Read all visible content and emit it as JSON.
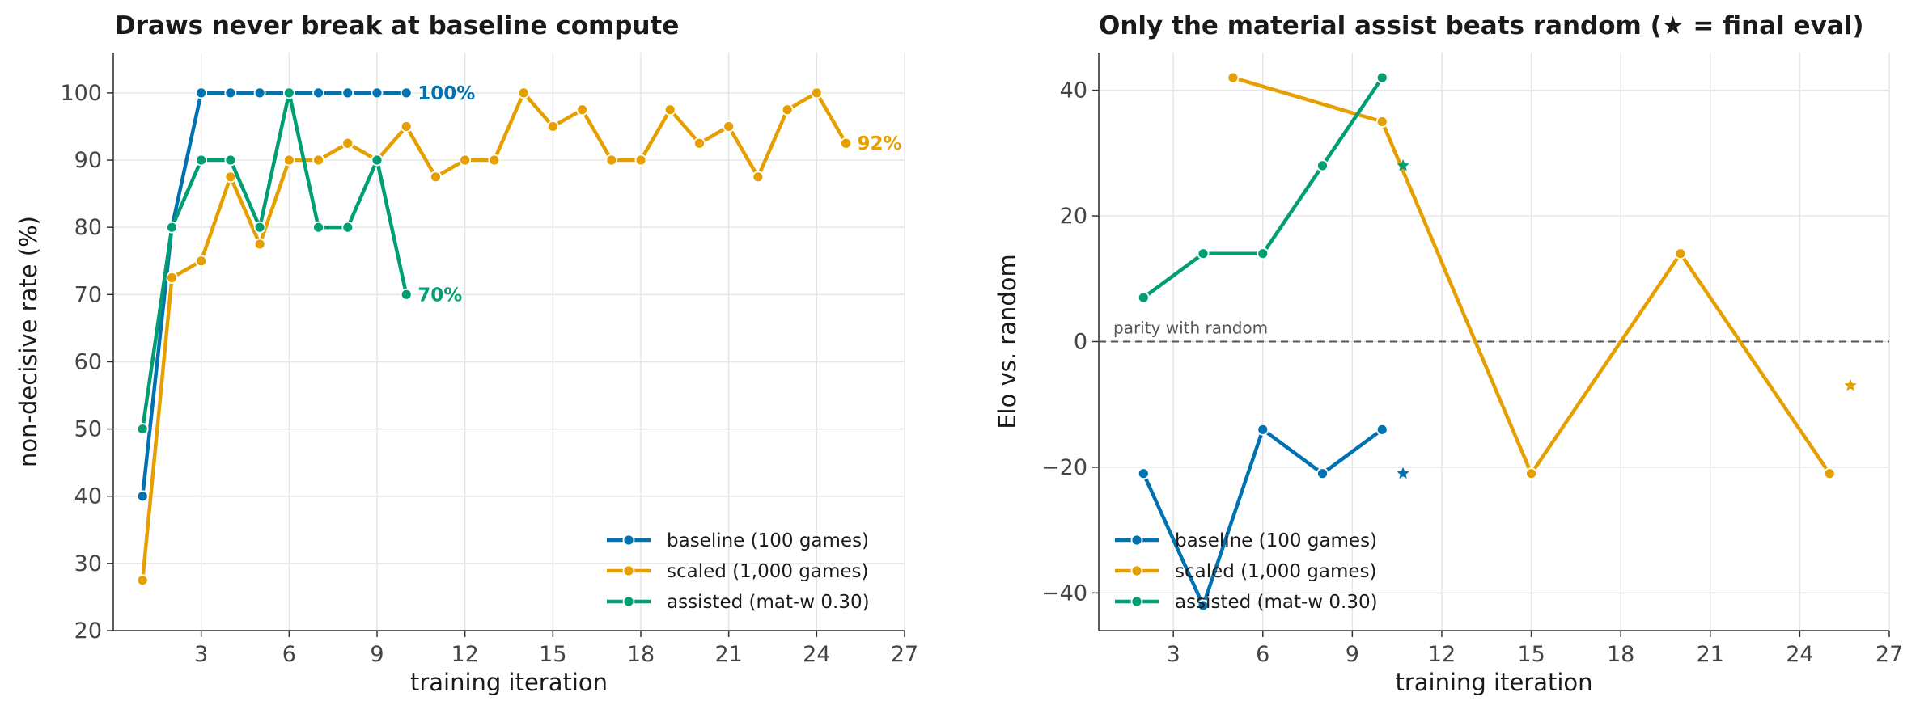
{
  "colors": {
    "baseline": "#0072B2",
    "scaled": "#E69F00",
    "assisted": "#009E73",
    "reference": "#555555"
  },
  "chart_data": [
    {
      "type": "line",
      "title": "Draws never break at baseline compute",
      "xlabel": "training iteration",
      "ylabel": "non-decisive rate (%)",
      "xlim": [
        0,
        27
      ],
      "ylim": [
        20,
        106
      ],
      "xticks": [
        3,
        6,
        9,
        12,
        15,
        18,
        21,
        24,
        27
      ],
      "yticks": [
        20,
        30,
        40,
        50,
        60,
        70,
        80,
        90,
        100
      ],
      "grid": true,
      "legend_position": "bottom-right",
      "series": [
        {
          "key": "baseline",
          "name": "baseline (100 games)",
          "x": [
            1,
            2,
            3,
            4,
            5,
            6,
            7,
            8,
            9,
            10
          ],
          "y": [
            40,
            80,
            100,
            100,
            100,
            100,
            100,
            100,
            100,
            100
          ],
          "end_label": "100%"
        },
        {
          "key": "scaled",
          "name": "scaled (1,000 games)",
          "x": [
            1,
            2,
            3,
            4,
            5,
            6,
            7,
            8,
            9,
            10,
            11,
            12,
            13,
            14,
            15,
            16,
            17,
            18,
            19,
            20,
            21,
            22,
            23,
            24,
            25
          ],
          "y": [
            27.5,
            72.5,
            75,
            87.5,
            77.5,
            90,
            90,
            92.5,
            90,
            95,
            87.5,
            90,
            90,
            100,
            95,
            97.5,
            90,
            90,
            97.5,
            92.5,
            95,
            87.5,
            97.5,
            100,
            92.5
          ],
          "end_label": "92%"
        },
        {
          "key": "assisted",
          "name": "assisted (mat-w 0.30)",
          "x": [
            1,
            2,
            3,
            4,
            5,
            6,
            7,
            8,
            9,
            10
          ],
          "y": [
            50,
            80,
            90,
            90,
            80,
            100,
            80,
            80,
            90,
            70
          ],
          "end_label": "70%"
        }
      ]
    },
    {
      "type": "line",
      "title": "Only the material assist beats random  (★ = final eval)",
      "xlabel": "training iteration",
      "ylabel": "Elo vs. random",
      "xlim": [
        0.5,
        27
      ],
      "ylim": [
        -46,
        46
      ],
      "xticks": [
        3,
        6,
        9,
        12,
        15,
        18,
        21,
        24,
        27
      ],
      "yticks": [
        -40,
        -20,
        0,
        20,
        40
      ],
      "grid": true,
      "legend_position": "bottom-left",
      "reference_line": {
        "y": 0,
        "label": "parity with random"
      },
      "series": [
        {
          "key": "baseline",
          "name": "baseline (100 games)",
          "x": [
            2,
            4,
            6,
            8,
            10
          ],
          "y": [
            -21,
            -42,
            -14,
            -21,
            -14
          ],
          "final_eval": {
            "x": 10.7,
            "y": -21
          }
        },
        {
          "key": "scaled",
          "name": "scaled (1,000 games)",
          "x": [
            5,
            10,
            15,
            20,
            25
          ],
          "y": [
            42,
            35,
            -21,
            14,
            -21
          ],
          "final_eval": {
            "x": 25.7,
            "y": -7
          }
        },
        {
          "key": "assisted",
          "name": "assisted (mat-w 0.30)",
          "x": [
            2,
            4,
            6,
            8,
            10
          ],
          "y": [
            7,
            14,
            14,
            28,
            42
          ],
          "final_eval": {
            "x": 10.7,
            "y": 28
          }
        }
      ]
    }
  ]
}
